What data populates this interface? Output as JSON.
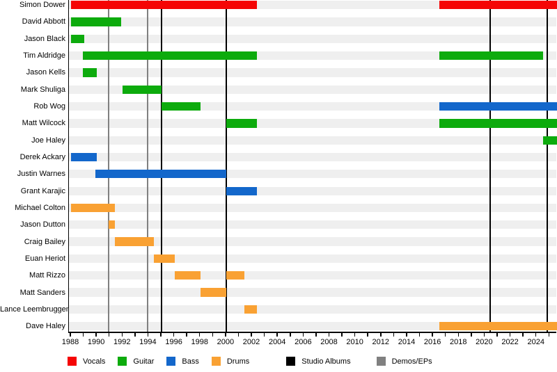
{
  "chart_data": {
    "type": "timeline",
    "description": "Band member tenure timeline (gantt-style), roles by color, with vertical release markers",
    "axis": {
      "min": 1987.84,
      "max": 2025.63,
      "tick_start": 1988,
      "tick_end": 2025,
      "tick_step": 1,
      "label_years": [
        1988,
        1990,
        1992,
        1994,
        1996,
        1998,
        2000,
        2002,
        2004,
        2006,
        2008,
        2010,
        2012,
        2014,
        2016,
        2018,
        2020,
        2022,
        2024
      ]
    },
    "role_colors": {
      "Vocals": "#f50505",
      "Guitar": "#0dab0d",
      "Bass": "#1367cb",
      "Drums": "#f9a133",
      "Studio Albums": "#000000",
      "Demos/EPs": "#808080"
    },
    "members": [
      {
        "name": "Simon Dower",
        "bars": [
          {
            "role": "Vocals",
            "from": 1988,
            "to": 2002.4
          },
          {
            "role": "Vocals",
            "from": 2016.5,
            "to": 2025.63
          }
        ]
      },
      {
        "name": "David Abbott",
        "bars": [
          {
            "role": "Guitar",
            "from": 1988,
            "to": 1991.9
          }
        ]
      },
      {
        "name": "Jason Black",
        "bars": [
          {
            "role": "Guitar",
            "from": 1988,
            "to": 1989
          }
        ]
      },
      {
        "name": "Tim Aldridge",
        "bars": [
          {
            "role": "Guitar",
            "from": 1988.9,
            "to": 2002.4
          },
          {
            "role": "Guitar",
            "from": 2016.5,
            "to": 2024.5
          }
        ]
      },
      {
        "name": "Jason Kells",
        "bars": [
          {
            "role": "Guitar",
            "from": 1988.9,
            "to": 1990
          }
        ]
      },
      {
        "name": "Mark Shuliga",
        "bars": [
          {
            "role": "Guitar",
            "from": 1992,
            "to": 1995
          }
        ]
      },
      {
        "name": "Rob Wog",
        "bars": [
          {
            "role": "Guitar",
            "from": 1995,
            "to": 1998
          },
          {
            "role": "Bass",
            "from": 2016.5,
            "to": 2025.63
          }
        ]
      },
      {
        "name": "Matt Wilcock",
        "bars": [
          {
            "role": "Guitar",
            "from": 2000,
            "to": 2002.4
          },
          {
            "role": "Guitar",
            "from": 2016.5,
            "to": 2025.63
          }
        ]
      },
      {
        "name": "Joe Haley",
        "bars": [
          {
            "role": "Guitar",
            "from": 2024.5,
            "to": 2025.63
          }
        ]
      },
      {
        "name": "Derek Ackary",
        "bars": [
          {
            "role": "Bass",
            "from": 1988,
            "to": 1990
          }
        ]
      },
      {
        "name": "Justin Warnes",
        "bars": [
          {
            "role": "Bass",
            "from": 1989.9,
            "to": 2000
          }
        ]
      },
      {
        "name": "Grant Karajic",
        "bars": [
          {
            "role": "Bass",
            "from": 2000,
            "to": 2002.4
          }
        ]
      },
      {
        "name": "Michael Colton",
        "bars": [
          {
            "role": "Drums",
            "from": 1988,
            "to": 1991.4
          }
        ]
      },
      {
        "name": "Jason Dutton",
        "bars": [
          {
            "role": "Drums",
            "from": 1990.9,
            "to": 1991.4
          }
        ]
      },
      {
        "name": "Craig Bailey",
        "bars": [
          {
            "role": "Drums",
            "from": 1991.4,
            "to": 1994.4
          }
        ]
      },
      {
        "name": "Euan Heriot",
        "bars": [
          {
            "role": "Drums",
            "from": 1994.4,
            "to": 1996
          }
        ]
      },
      {
        "name": "Matt Rizzo",
        "bars": [
          {
            "role": "Drums",
            "from": 1996,
            "to": 1998
          },
          {
            "role": "Drums",
            "from": 2000,
            "to": 2001.4
          }
        ]
      },
      {
        "name": "Matt Sanders",
        "bars": [
          {
            "role": "Drums",
            "from": 1998,
            "to": 2000
          }
        ]
      },
      {
        "name": "Lance Leembruggen",
        "bars": [
          {
            "role": "Drums",
            "from": 2001.4,
            "to": 2002.4
          }
        ]
      },
      {
        "name": "Dave Haley",
        "bars": [
          {
            "role": "Drums",
            "from": 2016.5,
            "to": 2025.63
          }
        ]
      }
    ],
    "event_lines": {
      "studio_albums": [
        1995,
        2000,
        2020.4,
        2024.8
      ],
      "demos_eps": [
        1990.9,
        1993.9
      ]
    }
  },
  "legend": {
    "items": [
      {
        "label": "Vocals",
        "role": "Vocals"
      },
      {
        "label": "Guitar",
        "role": "Guitar"
      },
      {
        "label": "Bass",
        "role": "Bass"
      },
      {
        "label": "Drums",
        "role": "Drums"
      },
      {
        "label": "Studio Albums",
        "role": "Studio Albums"
      },
      {
        "label": "Demos/EPs",
        "role": "Demos/EPs"
      }
    ]
  }
}
